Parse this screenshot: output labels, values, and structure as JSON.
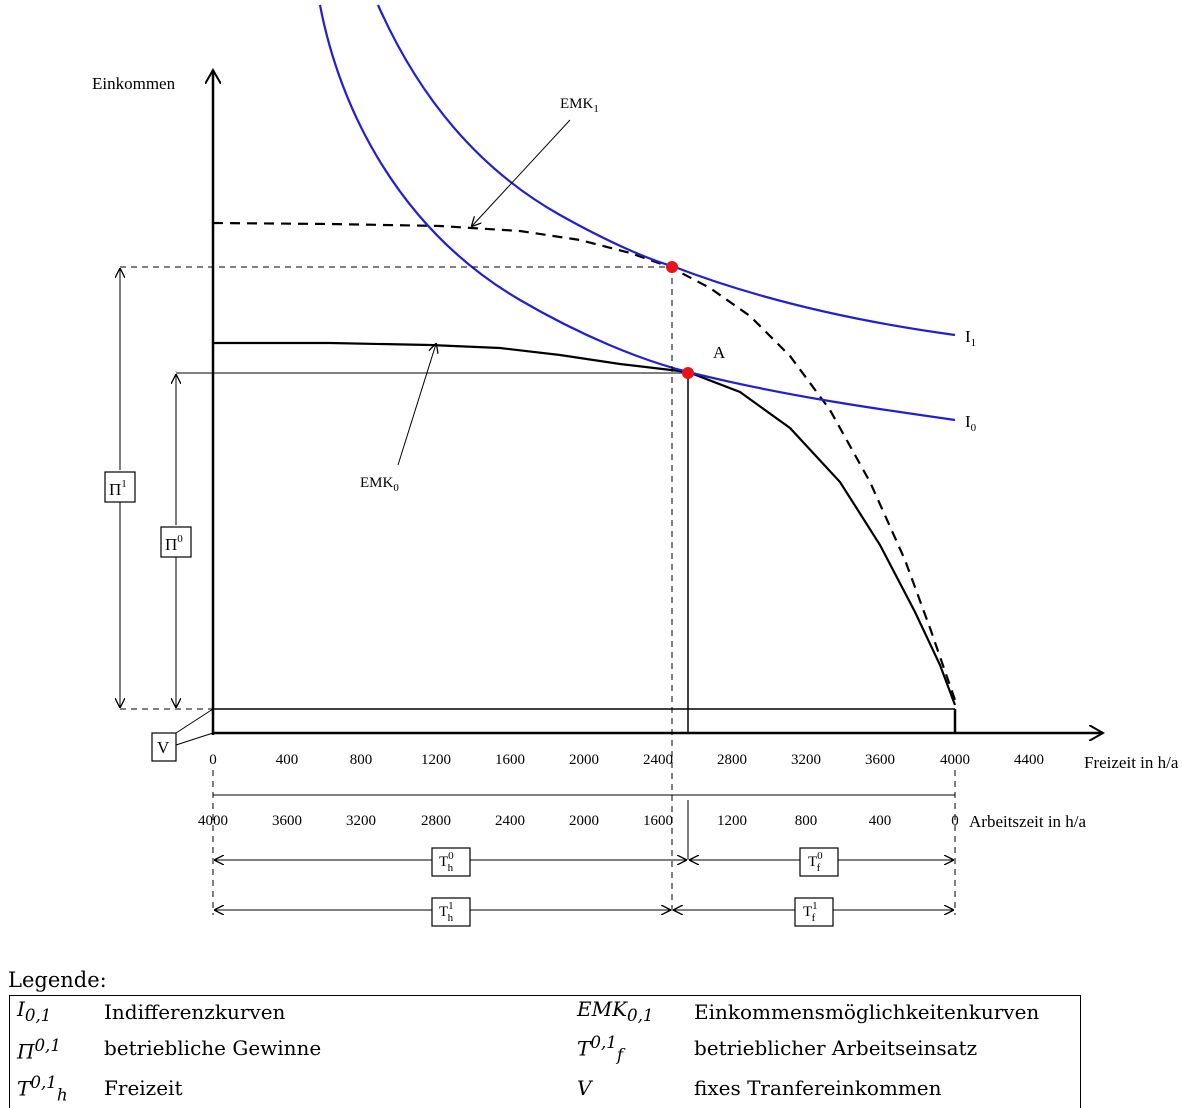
{
  "axes": {
    "y_label": "Einkommen",
    "x_label": "Freizeit in h/a",
    "x2_label": "Arbeitszeit in h/a",
    "freizeit_ticks": [
      "0",
      "400",
      "800",
      "1200",
      "1600",
      "2000",
      "2400",
      "2800",
      "3200",
      "3600",
      "4000",
      "4400"
    ],
    "arbeitszeit_ticks": [
      "4000",
      "3600",
      "3200",
      "2800",
      "2400",
      "2000",
      "1600",
      "1200",
      "800",
      "400",
      "0"
    ]
  },
  "curves": {
    "I0": {
      "name": "I",
      "sub": "0"
    },
    "I1": {
      "name": "I",
      "sub": "1"
    },
    "EMK0": {
      "name": "EMK",
      "sub": "0"
    },
    "EMK1": {
      "name": "EMK",
      "sub": "1"
    },
    "point_A": "A"
  },
  "boxes": {
    "pi1": {
      "name": "Π",
      "sup": "1"
    },
    "pi0": {
      "name": "Π",
      "sup": "0"
    },
    "v": "V",
    "th0": {
      "name": "T",
      "sub": "h",
      "sup": "0"
    },
    "tf0": {
      "name": "T",
      "sub": "f",
      "sup": "0"
    },
    "th1": {
      "name": "T",
      "sub": "h",
      "sup": "1"
    },
    "tf1": {
      "name": "T",
      "sub": "f",
      "sup": "1"
    }
  },
  "colors": {
    "indifference": "#1f1fd6",
    "point": "#e8131b"
  },
  "legend": {
    "title": "Legende:",
    "rows": [
      {
        "sym1": "I",
        "sym1_sub": "0,1",
        "desc1": "Indifferenzkurven",
        "sym2": "EMK",
        "sym2_sub": "0,1",
        "desc2": "Einkommensmöglichkeitenkurven"
      },
      {
        "sym1": "Π",
        "sym1_sup": "0,1",
        "desc1": "betriebliche Gewinne",
        "sym2": "T",
        "sym2_sup": "0,1",
        "sym2_sub": "f",
        "desc2": "betrieblicher Arbeitseinsatz"
      },
      {
        "sym1": "T",
        "sym1_sup": "0,1",
        "sym1_sub": "h",
        "desc1": "Freizeit",
        "sym2": "V",
        "desc2": "fixes Tranfereinkommen"
      }
    ]
  }
}
